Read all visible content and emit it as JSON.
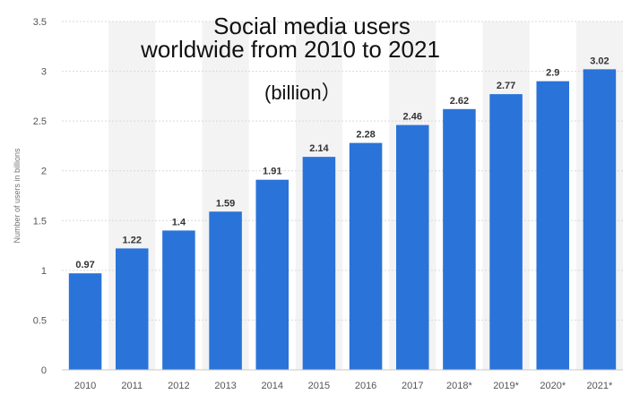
{
  "chart_data": {
    "type": "bar",
    "title_lines": [
      "Social media users",
      "worldwide from 2010 to 2021"
    ],
    "unit_note": "(billion）",
    "ylabel": "Number of users in billions",
    "xlabel": "",
    "categories": [
      "2010",
      "2011",
      "2012",
      "2013",
      "2014",
      "2015",
      "2016",
      "2017",
      "2018*",
      "2019*",
      "2020*",
      "2021*"
    ],
    "values": [
      0.97,
      1.22,
      1.4,
      1.59,
      1.91,
      2.14,
      2.28,
      2.46,
      2.62,
      2.77,
      2.9,
      3.02
    ],
    "value_labels": [
      "0.97",
      "1.22",
      "1.4",
      "1.59",
      "1.91",
      "2.14",
      "2.28",
      "2.46",
      "2.62",
      "2.77",
      "2.9",
      "3.02"
    ],
    "y_ticks": [
      0,
      0.5,
      1,
      1.5,
      2,
      2.5,
      3,
      3.5
    ],
    "y_tick_labels": [
      "0",
      "0.5",
      "1",
      "1.5",
      "2",
      "2.5",
      "3",
      "3.5"
    ],
    "ylim": [
      0,
      3.5
    ],
    "grid": true,
    "legend": "none",
    "colors": {
      "bar": "#2a73d9",
      "band_alt": "#f3f3f3",
      "grid": "#d9d9d9",
      "tick_text": "#555555",
      "value_text": "#333333"
    }
  }
}
